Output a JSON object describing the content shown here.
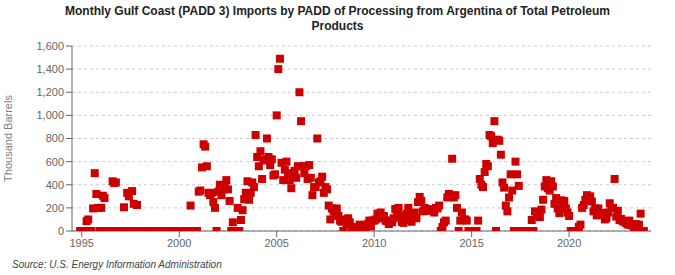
{
  "chart_data": {
    "type": "scatter",
    "title": "Monthly Gulf Coast (PADD 3) Imports by PADD of Processing from Argentina of Total Petroleum\nProducts",
    "y_label": "Thousand Barrels",
    "annotations": [
      "Source: U.S. Energy Information Administration"
    ],
    "color": "#cc0000",
    "marker": "square",
    "grid": "y",
    "xlim": [
      1994.5,
      2024.2
    ],
    "ylim": [
      0,
      1600
    ],
    "xticks": [
      1995,
      2000,
      2005,
      2010,
      2015,
      2020
    ],
    "yticks": [
      0,
      200,
      400,
      600,
      800,
      {
        "value": 1000,
        "label": "1,000"
      },
      {
        "value": 1200,
        "label": "1,200"
      },
      {
        "value": 1400,
        "label": "1,400"
      },
      {
        "value": 1600,
        "label": "1,600"
      }
    ],
    "x": [
      1994.917,
      1995.0,
      1995.083,
      1995.167,
      1995.25,
      1995.333,
      1995.417,
      1995.5,
      1995.583,
      1995.667,
      1995.75,
      1995.833,
      1995.917,
      1996.0,
      1996.083,
      1996.167,
      1996.25,
      1996.333,
      1996.417,
      1996.5,
      1996.583,
      1996.667,
      1996.75,
      1996.833,
      1997.0,
      1997.083,
      1997.167,
      1997.25,
      1997.333,
      1997.417,
      1997.5,
      1997.583,
      1997.667,
      1997.75,
      1997.833,
      1997.917,
      1998.0,
      1998.083,
      1998.167,
      1998.25,
      1998.333,
      1998.417,
      1998.5,
      1998.583,
      1998.667,
      1998.75,
      1998.833,
      1998.917,
      1999.0,
      1999.083,
      1999.167,
      1999.25,
      1999.333,
      1999.417,
      1999.5,
      1999.583,
      1999.667,
      1999.75,
      1999.833,
      1999.917,
      2000.0,
      2000.083,
      2000.167,
      2000.25,
      2000.333,
      2000.417,
      2000.5,
      2000.583,
      2000.667,
      2000.75,
      2000.833,
      2000.917,
      2001.0,
      2001.083,
      2001.167,
      2001.25,
      2001.333,
      2001.417,
      2001.5,
      2001.583,
      2001.667,
      2001.75,
      2001.833,
      2001.917,
      2002.0,
      2002.083,
      2002.167,
      2002.25,
      2002.333,
      2002.417,
      2002.5,
      2002.583,
      2002.667,
      2002.75,
      2002.833,
      2002.917,
      2003.0,
      2003.083,
      2003.167,
      2003.25,
      2003.333,
      2003.417,
      2003.5,
      2003.583,
      2003.667,
      2003.75,
      2003.833,
      2003.917,
      2004.0,
      2004.083,
      2004.167,
      2004.25,
      2004.333,
      2004.417,
      2004.5,
      2004.583,
      2004.667,
      2004.75,
      2004.833,
      2004.917,
      2005.0,
      2005.083,
      2005.167,
      2005.25,
      2005.333,
      2005.417,
      2005.5,
      2005.583,
      2005.667,
      2005.75,
      2005.833,
      2005.917,
      2006.0,
      2006.083,
      2006.167,
      2006.25,
      2006.333,
      2006.417,
      2006.5,
      2006.583,
      2006.667,
      2006.75,
      2006.833,
      2006.917,
      2007.0,
      2007.083,
      2007.167,
      2007.25,
      2007.333,
      2007.417,
      2007.5,
      2007.583,
      2007.667,
      2007.75,
      2007.833,
      2007.917,
      2008.0,
      2008.083,
      2008.167,
      2008.25,
      2008.333,
      2008.417,
      2008.5,
      2008.583,
      2008.667,
      2008.75,
      2008.833,
      2008.917,
      2009.0,
      2009.083,
      2009.167,
      2009.25,
      2009.333,
      2009.417,
      2009.5,
      2009.583,
      2009.667,
      2009.75,
      2009.833,
      2009.917,
      2010.0,
      2010.083,
      2010.167,
      2010.25,
      2010.333,
      2010.417,
      2010.5,
      2010.583,
      2010.667,
      2010.75,
      2010.833,
      2010.917,
      2011.0,
      2011.083,
      2011.167,
      2011.25,
      2011.333,
      2011.417,
      2011.5,
      2011.583,
      2011.667,
      2011.75,
      2011.833,
      2011.917,
      2012.0,
      2012.083,
      2012.167,
      2012.25,
      2012.333,
      2012.417,
      2012.5,
      2012.583,
      2012.667,
      2012.75,
      2012.833,
      2012.917,
      2013.0,
      2013.083,
      2013.167,
      2013.25,
      2013.333,
      2013.417,
      2013.5,
      2013.583,
      2013.667,
      2013.75,
      2013.833,
      2013.917,
      2014.0,
      2014.083,
      2014.167,
      2014.25,
      2014.333,
      2014.417,
      2014.5,
      2014.583,
      2014.667,
      2014.75,
      2014.833,
      2014.917,
      2015.0,
      2015.083,
      2015.167,
      2015.25,
      2015.333,
      2015.417,
      2015.5,
      2015.583,
      2015.667,
      2015.75,
      2015.833,
      2015.917,
      2016.0,
      2016.083,
      2016.167,
      2016.25,
      2016.333,
      2016.417,
      2016.5,
      2016.583,
      2016.667,
      2016.75,
      2016.833,
      2016.917,
      2017.0,
      2017.083,
      2017.167,
      2017.25,
      2017.333,
      2017.417,
      2017.5,
      2017.583,
      2017.667,
      2017.75,
      2017.833,
      2017.917,
      2018.0,
      2018.083,
      2018.167,
      2018.25,
      2018.333,
      2018.417,
      2018.5,
      2018.583,
      2018.667,
      2018.75,
      2018.833,
      2018.917,
      2019.0,
      2019.083,
      2019.167,
      2019.25,
      2019.333,
      2019.417,
      2019.5,
      2019.583,
      2019.667,
      2019.75,
      2019.833,
      2019.917,
      2020.0,
      2020.083,
      2020.167,
      2020.25,
      2020.333,
      2020.417,
      2020.5,
      2020.583,
      2020.667,
      2020.75,
      2020.833,
      2020.917,
      2021.0,
      2021.083,
      2021.167,
      2021.25,
      2021.333,
      2021.417,
      2021.5,
      2021.583,
      2021.667,
      2021.75,
      2021.833,
      2021.917,
      2022.0,
      2022.083,
      2022.167,
      2022.25,
      2022.333,
      2022.417,
      2022.5,
      2022.583,
      2022.667,
      2022.75,
      2022.833,
      2022.917,
      2023.0,
      2023.083,
      2023.167,
      2023.25,
      2023.333,
      2023.417,
      2023.5,
      2023.583,
      2023.667,
      2023.75,
      2023.833
    ],
    "values": [
      0,
      0,
      0,
      0,
      85,
      100,
      0,
      0,
      195,
      500,
      320,
      200,
      0,
      200,
      305,
      285,
      0,
      0,
      0,
      0,
      430,
      415,
      420,
      0,
      0,
      0,
      205,
      0,
      330,
      300,
      0,
      345,
      235,
      0,
      225,
      0,
      0,
      0,
      0,
      0,
      0,
      0,
      0,
      0,
      0,
      0,
      0,
      0,
      0,
      0,
      0,
      0,
      0,
      0,
      0,
      0,
      0,
      0,
      0,
      0,
      0,
      0,
      0,
      0,
      0,
      0,
      0,
      220,
      0,
      0,
      0,
      0,
      340,
      350,
      550,
      750,
      730,
      560,
      330,
      310,
      330,
      250,
      200,
      0,
      340,
      400,
      310,
      360,
      390,
      440,
      360,
      260,
      0,
      75,
      0,
      0,
      200,
      0,
      95,
      180,
      275,
      330,
      430,
      270,
      330,
      420,
      380,
      830,
      640,
      560,
      690,
      450,
      610,
      620,
      800,
      640,
      570,
      620,
      480,
      490,
      1000,
      1400,
      1490,
      590,
      440,
      530,
      600,
      500,
      440,
      370,
      480,
      520,
      460,
      560,
      1200,
      950,
      560,
      500,
      560,
      450,
      570,
      460,
      310,
      380,
      380,
      800,
      420,
      430,
      470,
      330,
      380,
      360,
      220,
      100,
      195,
      170,
      135,
      195,
      130,
      90,
      80,
      0,
      100,
      55,
      110,
      75,
      35,
      0,
      0,
      20,
      30,
      55,
      45,
      35,
      30,
      25,
      60,
      90,
      40,
      90,
      90,
      100,
      150,
      120,
      160,
      110,
      130,
      90,
      85,
      60,
      90,
      75,
      110,
      190,
      150,
      200,
      130,
      80,
      70,
      95,
      150,
      200,
      130,
      80,
      130,
      160,
      110,
      250,
      295,
      260,
      170,
      200,
      175,
      190,
      180,
      180,
      175,
      160,
      200,
      195,
      220,
      0,
      35,
      75,
      90,
      290,
      320,
      300,
      625,
      290,
      310,
      200,
      0,
      90,
      160,
      100,
      100,
      90,
      0,
      0,
      0,
      0,
      0,
      0,
      90,
      450,
      400,
      380,
      510,
      580,
      560,
      830,
      820,
      760,
      950,
      0,
      790,
      780,
      660,
      420,
      375,
      220,
      170,
      290,
      490,
      350,
      0,
      600,
      490,
      390,
      0,
      0,
      0,
      0,
      0,
      0,
      0,
      95,
      0,
      170,
      130,
      155,
      120,
      185,
      270,
      385,
      440,
      370,
      350,
      430,
      385,
      235,
      285,
      195,
      155,
      265,
      195,
      260,
      195,
      160,
      130,
      0,
      0,
      0,
      0,
      0,
      35,
      55,
      200,
      225,
      270,
      310,
      290,
      300,
      255,
      170,
      195,
      135,
      195,
      155,
      145,
      155,
      100,
      110,
      160,
      240,
      200,
      200,
      450,
      125,
      175,
      95,
      105,
      85,
      80,
      70,
      55,
      90,
      50,
      50,
      30,
      60,
      30,
      55,
      150,
      0,
      0
    ]
  }
}
